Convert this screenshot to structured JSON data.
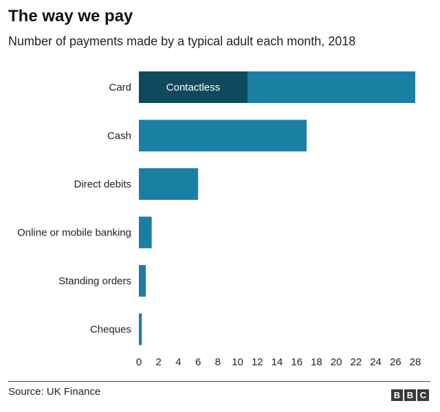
{
  "header": {
    "title": "The way we pay",
    "subtitle": "Number of payments made by a typical adult each month, 2018"
  },
  "footer": {
    "source": "Source: UK Finance",
    "logo_letters": [
      "B",
      "B",
      "C"
    ]
  },
  "colors": {
    "bar": "#1a80a3",
    "contactless": "#0e4a5e",
    "axis_line": "#444444"
  },
  "chart_data": {
    "type": "bar",
    "orientation": "horizontal",
    "categories": [
      "Card",
      "Cash",
      "Direct debits",
      "Online or mobile banking",
      "Standing orders",
      "Cheques"
    ],
    "values": [
      28,
      17,
      6,
      1.3,
      0.7,
      0.3
    ],
    "segments": [
      {
        "category": "Card",
        "label": "Contactless",
        "value": 11
      }
    ],
    "xticks": [
      0,
      2,
      4,
      6,
      8,
      10,
      12,
      14,
      16,
      18,
      20,
      22,
      24,
      26,
      28
    ],
    "xlim": [
      0,
      28
    ],
    "grid": false
  }
}
